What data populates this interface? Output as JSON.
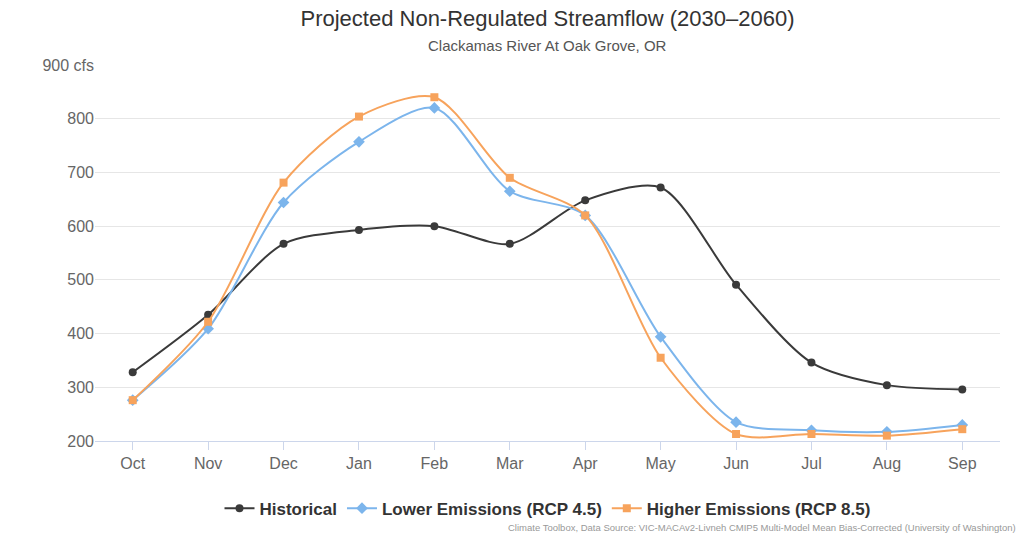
{
  "chart_data": {
    "type": "line",
    "title": "Projected Non-Regulated Streamflow (2030–2060)",
    "subtitle": "Clackamas River At Oak Grove, OR",
    "annotations": [
      "Climate Toolbox, Data Source: VIC-MACAv2-Livneh CMIP5 Multi-Model Mean Bias-Corrected (University of Washington)"
    ],
    "categories": [
      "Oct",
      "Nov",
      "Dec",
      "Jan",
      "Feb",
      "Mar",
      "Apr",
      "May",
      "Jun",
      "Jul",
      "Aug",
      "Sep"
    ],
    "series": [
      {
        "name": "Historical",
        "color": "#3a3a3a",
        "marker": "circle",
        "values": [
          328,
          435,
          567,
          593,
          600,
          567,
          648,
          672,
          491,
          346,
          304,
          296
        ]
      },
      {
        "name": "Lower Emissions (RCP 4.5)",
        "color": "#7cb5ec",
        "marker": "diamond",
        "values": [
          276,
          409,
          644,
          757,
          820,
          665,
          620,
          394,
          235,
          220,
          217,
          230
        ]
      },
      {
        "name": "Higher Emissions (RCP 8.5)",
        "color": "#f7a35c",
        "marker": "square",
        "values": [
          276,
          422,
          681,
          804,
          840,
          690,
          620,
          355,
          213,
          213,
          210,
          222
        ]
      }
    ],
    "ylim": [
      200,
      900
    ],
    "yticks": [
      200,
      300,
      400,
      500,
      600,
      700,
      800,
      {
        "value": 900,
        "label": "900 cfs"
      }
    ],
    "grid": true,
    "legend": "bottom"
  }
}
